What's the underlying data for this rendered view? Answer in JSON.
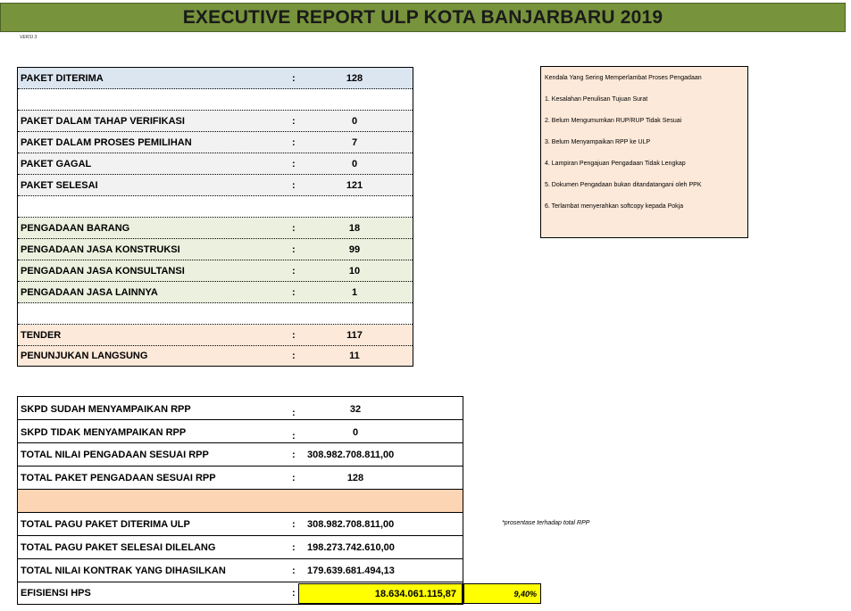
{
  "title": "EXECUTIVE REPORT ULP KOTA BANJARBARU 2019",
  "version": "VERSI 3",
  "summary": {
    "colon": ":",
    "rows": [
      {
        "label": "PAKET DITERIMA",
        "value": "128"
      },
      {
        "label": "PAKET DALAM TAHAP VERIFIKASI",
        "value": "0"
      },
      {
        "label": "PAKET DALAM PROSES PEMILIHAN",
        "value": "7"
      },
      {
        "label": "PAKET GAGAL",
        "value": "0"
      },
      {
        "label": "PAKET SELESAI",
        "value": "121"
      },
      {
        "label": "PENGADAAN BARANG",
        "value": "18"
      },
      {
        "label": "PENGADAAN JASA KONSTRUKSI",
        "value": "99"
      },
      {
        "label": "PENGADAAN JASA KONSULTANSI",
        "value": "10"
      },
      {
        "label": "PENGADAAN JASA LAINNYA",
        "value": "1"
      },
      {
        "label": "TENDER",
        "value": "117"
      },
      {
        "label": "PENUNJUKAN LANGSUNG",
        "value": "11"
      }
    ]
  },
  "kendala": {
    "title": "Kendala Yang Sering Memperlambat Proses Pengadaan",
    "items": [
      "1. Kesalahan Penulisan Tujuan Surat",
      "2. Belum Mengumumkan RUP/RUP Tidak Sesuai",
      "3. Belum Menyampaikan RPP ke ULP",
      "4. Lampiran Pengajuan Pengadaan Tidak Lengkap",
      "5. Dokumen Pengadaan bukan ditandatangani oleh PPK",
      "6. Terlambat menyerahkan softcopy kepada Pokja"
    ]
  },
  "rpp": {
    "rows": [
      {
        "label": "SKPD SUDAH MENYAMPAIKAN RPP",
        "value": "32"
      },
      {
        "label": "SKPD TIDAK MENYAMPAIKAN RPP",
        "value": "0"
      },
      {
        "label": "TOTAL NILAI PENGADAAN SESUAI RPP",
        "value": "308.982.708.811,00"
      },
      {
        "label": "TOTAL PAKET PENGADAAN SESUAI RPP",
        "value": "128"
      },
      {
        "label": "TOTAL PAGU PAKET DITERIMA  ULP",
        "value": "308.982.708.811,00"
      },
      {
        "label": "TOTAL PAGU PAKET SELESAI DILELANG",
        "value": "198.273.742.610,00"
      },
      {
        "label": "TOTAL NILAI KONTRAK YANG DIHASILKAN",
        "value": "179.639.681.494,13"
      },
      {
        "label": "EFISIENSI HPS",
        "value": "18.634.061.115,87"
      }
    ],
    "efficiency_percent": "9,40%",
    "note": "*prosentase terhadap total RPP"
  },
  "colors": {
    "title_bg": "#77933c",
    "blue": "#dce6f1",
    "gray": "#f2f2f2",
    "green": "#ebf1de",
    "peach": "#fde9d9",
    "highlight": "#ffff00"
  }
}
